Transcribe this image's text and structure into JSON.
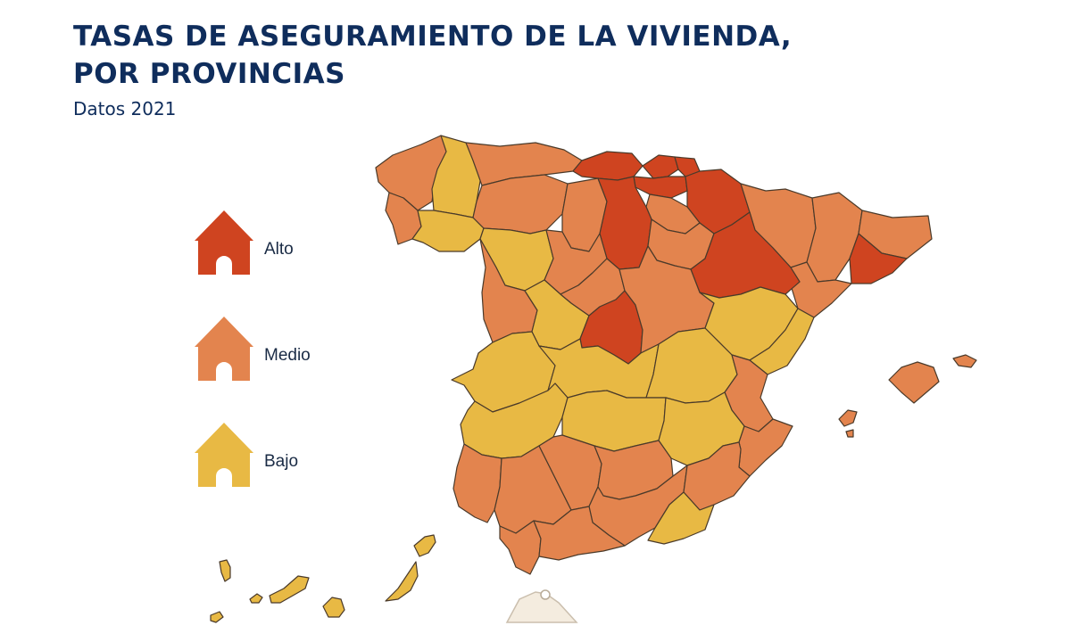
{
  "title_line1": "TASAS DE ASEGURAMIENTO DE LA VIVIENDA,",
  "title_line2": "POR PROVINCIAS",
  "subtitle": "Datos 2021",
  "colors": {
    "alto": "#cf4420",
    "medio": "#e3844e",
    "bajo": "#e8b944",
    "morocco": "#f4ecdf",
    "outline": "#4a3a2a"
  },
  "legend": [
    {
      "key": "alto",
      "label": "Alto"
    },
    {
      "key": "medio",
      "label": "Medio"
    },
    {
      "key": "bajo",
      "label": "Bajo"
    }
  ],
  "regions": [
    {
      "name": "A Coruña",
      "level": "medio"
    },
    {
      "name": "Lugo",
      "level": "bajo"
    },
    {
      "name": "Pontevedra",
      "level": "medio"
    },
    {
      "name": "Ourense",
      "level": "bajo"
    },
    {
      "name": "Asturias",
      "level": "medio"
    },
    {
      "name": "Cantabria",
      "level": "alto"
    },
    {
      "name": "Bizkaia",
      "level": "alto"
    },
    {
      "name": "Gipuzkoa",
      "level": "alto"
    },
    {
      "name": "Araba",
      "level": "alto"
    },
    {
      "name": "Navarra",
      "level": "alto"
    },
    {
      "name": "La Rioja",
      "level": "medio"
    },
    {
      "name": "Huesca",
      "level": "medio"
    },
    {
      "name": "Lleida",
      "level": "medio"
    },
    {
      "name": "Girona",
      "level": "medio"
    },
    {
      "name": "Barcelona",
      "level": "alto"
    },
    {
      "name": "Tarragona",
      "level": "medio"
    },
    {
      "name": "León",
      "level": "medio"
    },
    {
      "name": "Palencia",
      "level": "medio"
    },
    {
      "name": "Burgos",
      "level": "alto"
    },
    {
      "name": "Zamora",
      "level": "bajo"
    },
    {
      "name": "Valladolid",
      "level": "medio"
    },
    {
      "name": "Soria",
      "level": "medio"
    },
    {
      "name": "Zaragoza",
      "level": "alto"
    },
    {
      "name": "Salamanca",
      "level": "medio"
    },
    {
      "name": "Ávila",
      "level": "bajo"
    },
    {
      "name": "Segovia",
      "level": "medio"
    },
    {
      "name": "Madrid",
      "level": "alto"
    },
    {
      "name": "Guadalajara",
      "level": "medio"
    },
    {
      "name": "Teruel",
      "level": "bajo"
    },
    {
      "name": "Castellón",
      "level": "bajo"
    },
    {
      "name": "Cáceres",
      "level": "bajo"
    },
    {
      "name": "Toledo",
      "level": "bajo"
    },
    {
      "name": "Cuenca",
      "level": "bajo"
    },
    {
      "name": "Valencia",
      "level": "medio"
    },
    {
      "name": "Badajoz",
      "level": "bajo"
    },
    {
      "name": "Ciudad Real",
      "level": "bajo"
    },
    {
      "name": "Albacete",
      "level": "bajo"
    },
    {
      "name": "Alicante",
      "level": "medio"
    },
    {
      "name": "Huelva",
      "level": "medio"
    },
    {
      "name": "Sevilla",
      "level": "medio"
    },
    {
      "name": "Córdoba",
      "level": "medio"
    },
    {
      "name": "Jaén",
      "level": "medio"
    },
    {
      "name": "Granada",
      "level": "medio"
    },
    {
      "name": "Murcia",
      "level": "medio"
    },
    {
      "name": "Almería",
      "level": "bajo"
    },
    {
      "name": "Cádiz",
      "level": "medio"
    },
    {
      "name": "Málaga",
      "level": "medio"
    },
    {
      "name": "Mallorca",
      "level": "medio"
    },
    {
      "name": "Menorca",
      "level": "medio"
    },
    {
      "name": "Ibiza",
      "level": "medio"
    },
    {
      "name": "Formentera",
      "level": "medio"
    },
    {
      "name": "Lanzarote",
      "level": "bajo"
    },
    {
      "name": "Fuerteventura",
      "level": "bajo"
    },
    {
      "name": "Gran Canaria",
      "level": "bajo"
    },
    {
      "name": "Tenerife",
      "level": "bajo"
    },
    {
      "name": "La Gomera",
      "level": "bajo"
    },
    {
      "name": "La Palma",
      "level": "bajo"
    },
    {
      "name": "El Hierro",
      "level": "bajo"
    }
  ]
}
